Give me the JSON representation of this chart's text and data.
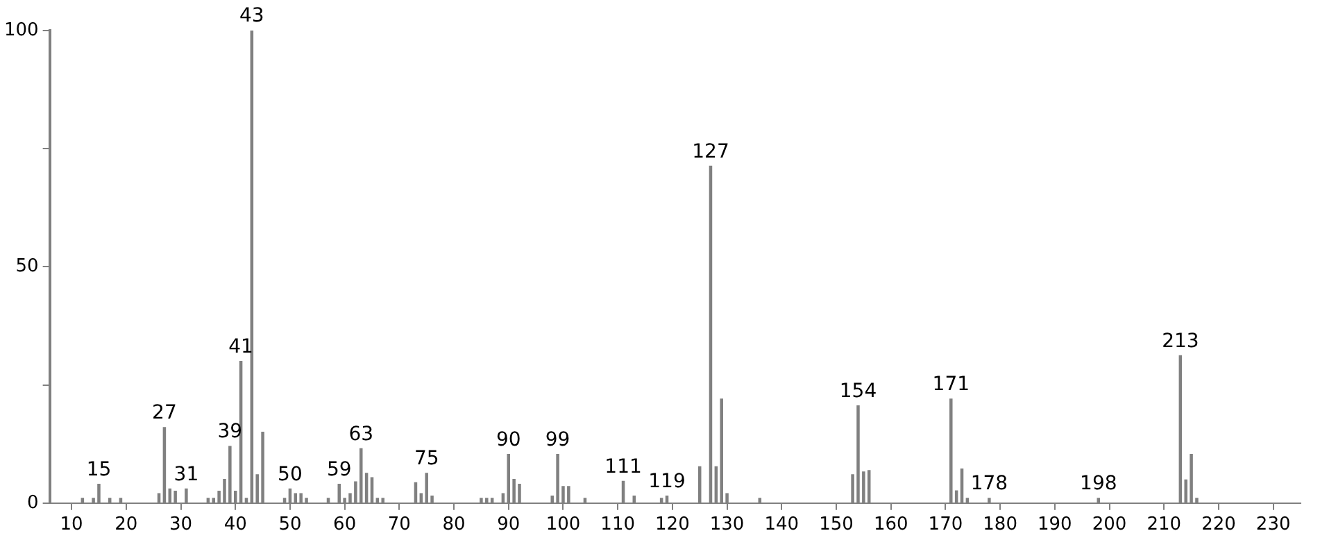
{
  "chart_data": {
    "type": "bar",
    "x": [
      12,
      14,
      15,
      17,
      19,
      26,
      27,
      28,
      29,
      31,
      35,
      36,
      37,
      38,
      39,
      40,
      41,
      42,
      43,
      44,
      45,
      49,
      50,
      51,
      52,
      53,
      57,
      59,
      60,
      61,
      62,
      63,
      64,
      65,
      66,
      67,
      73,
      74,
      75,
      76,
      85,
      86,
      87,
      89,
      90,
      91,
      92,
      98,
      99,
      100,
      101,
      104,
      111,
      113,
      118,
      119,
      125,
      127,
      128,
      129,
      130,
      136,
      153,
      154,
      155,
      156,
      171,
      172,
      173,
      174,
      178,
      198,
      213,
      214,
      215,
      216
    ],
    "values": [
      1,
      1,
      4,
      1,
      1,
      2,
      16,
      3,
      2.5,
      3,
      1,
      1,
      2.5,
      5,
      12,
      2.5,
      30,
      1,
      100,
      6,
      15,
      1,
      3,
      2,
      2,
      1,
      1,
      4,
      1,
      2,
      4.5,
      11.5,
      6.3,
      5.4,
      1,
      1,
      4.3,
      2,
      6.3,
      1.5,
      1,
      1,
      1,
      2,
      10.3,
      5,
      4,
      1.5,
      10.3,
      3.5,
      3.5,
      1,
      4.6,
      1.5,
      1,
      1.5,
      7.7,
      71.3,
      7.7,
      22,
      2,
      1,
      6,
      20.6,
      6.6,
      6.9,
      22,
      2.6,
      7.2,
      1,
      1,
      1,
      31.2,
      4.9,
      10.3,
      1
    ],
    "color": "#808080",
    "xlim": [
      6,
      235
    ],
    "xticks": [
      10,
      20,
      30,
      40,
      50,
      60,
      70,
      80,
      90,
      100,
      110,
      120,
      130,
      140,
      150,
      160,
      170,
      180,
      190,
      200,
      210,
      220,
      230
    ],
    "ylim": [
      0,
      100
    ],
    "yticks": [
      0,
      {
        "value": 25,
        "label": null
      },
      50,
      {
        "value": 75,
        "label": null
      },
      100
    ],
    "grid": false,
    "legend": false,
    "annotations": [
      {
        "text": "15",
        "x": 15,
        "y": 4
      },
      {
        "text": "27",
        "x": 27,
        "y": 16
      },
      {
        "text": "31",
        "x": 31,
        "y": 3
      },
      {
        "text": "39",
        "x": 39,
        "y": 12
      },
      {
        "text": "41",
        "x": 41,
        "y": 30
      },
      {
        "text": "43",
        "x": 43,
        "y": 100
      },
      {
        "text": "50",
        "x": 50,
        "y": 3
      },
      {
        "text": "59",
        "x": 59,
        "y": 4
      },
      {
        "text": "63",
        "x": 63,
        "y": 11.5
      },
      {
        "text": "75",
        "x": 75,
        "y": 6.3
      },
      {
        "text": "90",
        "x": 90,
        "y": 10.3
      },
      {
        "text": "99",
        "x": 99,
        "y": 10.3
      },
      {
        "text": "111",
        "x": 111,
        "y": 4.6
      },
      {
        "text": "119",
        "x": 119,
        "y": 1.5
      },
      {
        "text": "127",
        "x": 127,
        "y": 71.3
      },
      {
        "text": "154",
        "x": 154,
        "y": 20.6
      },
      {
        "text": "171",
        "x": 171,
        "y": 22
      },
      {
        "text": "178",
        "x": 178,
        "y": 1
      },
      {
        "text": "198",
        "x": 198,
        "y": 1
      },
      {
        "text": "213",
        "x": 213,
        "y": 31.2
      }
    ]
  }
}
